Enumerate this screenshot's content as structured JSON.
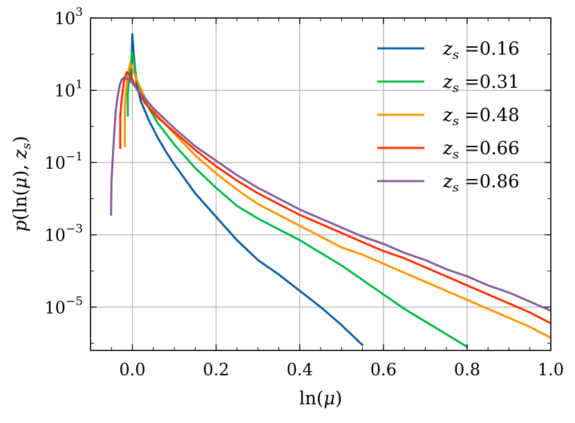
{
  "chart_data": {
    "type": "line",
    "title": "",
    "xlabel": "ln(μ)",
    "ylabel": "p(ln(μ), z_s)",
    "xlim": [
      -0.1,
      1.0
    ],
    "ylim_log10": [
      -6.2,
      3
    ],
    "yscale": "log",
    "grid": true,
    "legend_position": "top-right",
    "x_ticks": [
      {
        "value": 0.0,
        "label": "0.0"
      },
      {
        "value": 0.2,
        "label": "0.2"
      },
      {
        "value": 0.4,
        "label": "0.4"
      },
      {
        "value": 0.6,
        "label": "0.6"
      },
      {
        "value": 0.8,
        "label": "0.8"
      },
      {
        "value": 1.0,
        "label": "1.0"
      }
    ],
    "y_ticks": [
      {
        "exp": 3,
        "base": "10",
        "sup": "3"
      },
      {
        "exp": 1,
        "base": "10",
        "sup": "1"
      },
      {
        "exp": -1,
        "base": "10",
        "sup": "−1"
      },
      {
        "exp": -3,
        "base": "10",
        "sup": "−3"
      },
      {
        "exp": -5,
        "base": "10",
        "sup": "−5"
      }
    ],
    "series": [
      {
        "name": "z_s =0.16",
        "sym": "z",
        "sub": "s",
        "eq": "=0.16",
        "color": "#0c5da5",
        "x": [
          -0.003,
          -0.002,
          0.0,
          0.003,
          0.01,
          0.02,
          0.04,
          0.06,
          0.08,
          0.1,
          0.15,
          0.2,
          0.25,
          0.3,
          0.35,
          0.4,
          0.45,
          0.5,
          0.55
        ],
        "log10y": [
          1.3,
          1.7,
          2.55,
          2.0,
          1.2,
          0.7,
          0.15,
          -0.3,
          -0.7,
          -1.05,
          -1.85,
          -2.5,
          -3.15,
          -3.7,
          -4.1,
          -4.55,
          -5.0,
          -5.5,
          -6.05
        ]
      },
      {
        "name": "z_s =0.31",
        "sym": "z",
        "sub": "s",
        "eq": "=0.31",
        "color": "#00b945",
        "x": [
          -0.011,
          -0.011,
          -0.008,
          -0.004,
          -0.001,
          0.004,
          0.01,
          0.03,
          0.06,
          0.1,
          0.15,
          0.2,
          0.25,
          0.3,
          0.35,
          0.4,
          0.45,
          0.5,
          0.55,
          0.6,
          0.65,
          0.7,
          0.75,
          0.8
        ],
        "log10y": [
          0.3,
          0.9,
          1.3,
          1.7,
          2.05,
          1.75,
          1.3,
          0.7,
          0.1,
          -0.5,
          -1.15,
          -1.7,
          -2.2,
          -2.55,
          -2.85,
          -3.15,
          -3.5,
          -3.85,
          -4.25,
          -4.65,
          -5.05,
          -5.4,
          -5.75,
          -6.1
        ]
      },
      {
        "name": "z_s =0.48",
        "sym": "z",
        "sub": "s",
        "eq": "=0.48",
        "color": "#ff9500",
        "x": [
          -0.018,
          -0.018,
          -0.015,
          -0.01,
          -0.005,
          0.0,
          0.01,
          0.03,
          0.06,
          0.1,
          0.15,
          0.2,
          0.25,
          0.3,
          0.35,
          0.4,
          0.45,
          0.5,
          0.55,
          0.6,
          0.65,
          0.7,
          0.75,
          0.8,
          0.85,
          0.9,
          0.95,
          1.0
        ],
        "log10y": [
          -0.55,
          0.5,
          1.0,
          1.5,
          1.75,
          1.6,
          1.3,
          0.8,
          0.3,
          -0.2,
          -0.8,
          -1.3,
          -1.75,
          -2.15,
          -2.45,
          -2.75,
          -3.05,
          -3.35,
          -3.55,
          -3.8,
          -4.05,
          -4.3,
          -4.55,
          -4.8,
          -5.05,
          -5.3,
          -5.55,
          -5.85
        ]
      },
      {
        "name": "z_s =0.66",
        "sym": "z",
        "sub": "s",
        "eq": "=0.66",
        "color": "#ff2c00",
        "x": [
          -0.029,
          -0.029,
          -0.025,
          -0.02,
          -0.014,
          -0.008,
          0.0,
          0.01,
          0.03,
          0.06,
          0.1,
          0.15,
          0.2,
          0.25,
          0.3,
          0.35,
          0.4,
          0.45,
          0.5,
          0.55,
          0.6,
          0.65,
          0.7,
          0.75,
          0.8,
          0.85,
          0.9,
          0.95,
          1.0
        ],
        "log10y": [
          -0.6,
          0.3,
          0.8,
          1.25,
          1.5,
          1.45,
          1.3,
          1.05,
          0.65,
          0.25,
          -0.15,
          -0.65,
          -1.1,
          -1.5,
          -1.85,
          -2.15,
          -2.45,
          -2.7,
          -2.95,
          -3.2,
          -3.45,
          -3.65,
          -3.9,
          -4.15,
          -4.4,
          -4.65,
          -4.9,
          -5.15,
          -5.45
        ]
      },
      {
        "name": "z_s =0.86",
        "sym": "z",
        "sub": "s",
        "eq": "=0.86",
        "color": "#845b97",
        "x": [
          -0.051,
          -0.05,
          -0.045,
          -0.04,
          -0.035,
          -0.03,
          -0.025,
          -0.02,
          -0.01,
          0.0,
          0.02,
          0.05,
          0.1,
          0.15,
          0.2,
          0.25,
          0.3,
          0.35,
          0.4,
          0.45,
          0.5,
          0.55,
          0.6,
          0.65,
          0.7,
          0.75,
          0.8,
          0.85,
          0.9,
          0.95,
          1.0
        ],
        "log10y": [
          -2.45,
          -1.5,
          -0.5,
          0.4,
          0.85,
          1.15,
          1.3,
          1.35,
          1.3,
          1.2,
          0.9,
          0.5,
          -0.05,
          -0.55,
          -0.95,
          -1.35,
          -1.7,
          -2.0,
          -2.3,
          -2.55,
          -2.8,
          -3.05,
          -3.25,
          -3.5,
          -3.7,
          -3.95,
          -4.15,
          -4.4,
          -4.6,
          -4.85,
          -5.1
        ]
      }
    ]
  }
}
